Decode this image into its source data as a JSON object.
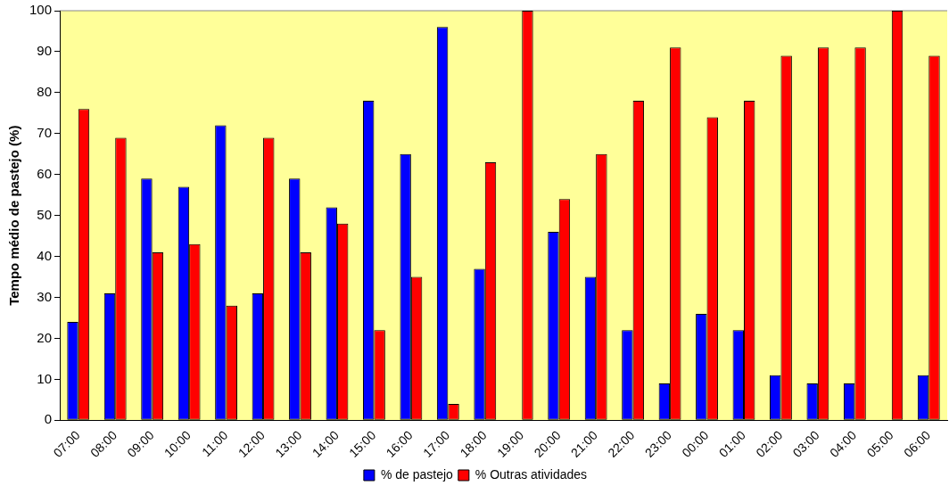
{
  "chart_data": {
    "type": "bar",
    "ylabel": "Tempo médio de pastejo (%)",
    "categories": [
      "07:00",
      "08:00",
      "09:00",
      "10:00",
      "11:00",
      "12:00",
      "13:00",
      "14:00",
      "15:00",
      "16:00",
      "17:00",
      "18:00",
      "19:00",
      "20:00",
      "21:00",
      "22:00",
      "23:00",
      "00:00",
      "01:00",
      "02:00",
      "03:00",
      "04:00",
      "05:00",
      "06:00"
    ],
    "series": [
      {
        "name": "% de pastejo",
        "color": "#0000ff",
        "values": [
          24,
          31,
          59,
          57,
          72,
          31,
          59,
          52,
          78,
          65,
          96,
          37,
          0,
          46,
          35,
          22,
          9,
          26,
          22,
          11,
          9,
          9,
          0,
          11
        ]
      },
      {
        "name": "% Outras atividades",
        "color": "#ff0000",
        "values": [
          76,
          69,
          41,
          43,
          28,
          69,
          41,
          48,
          22,
          35,
          4,
          63,
          100,
          54,
          65,
          78,
          91,
          74,
          78,
          89,
          91,
          91,
          100,
          89
        ]
      }
    ],
    "ylim": [
      0,
      100
    ],
    "yticks": [
      0,
      10,
      20,
      30,
      40,
      50,
      60,
      70,
      80,
      90,
      100
    ],
    "grid": false,
    "legend": "bottom"
  }
}
